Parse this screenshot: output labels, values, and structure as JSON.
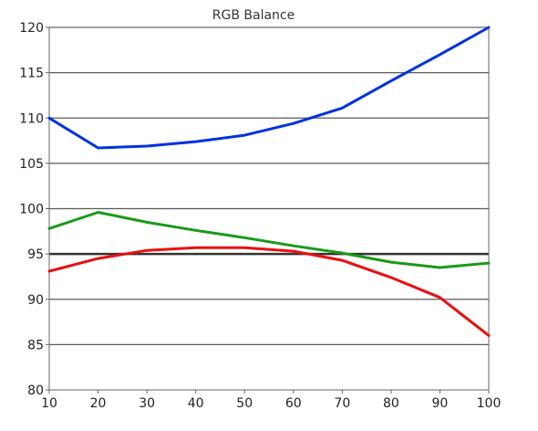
{
  "chart_data": {
    "type": "line",
    "title": "RGB Balance",
    "xlabel": "",
    "ylabel": "",
    "xlim": [
      10,
      100
    ],
    "ylim": [
      80,
      120
    ],
    "x": [
      10,
      20,
      30,
      40,
      50,
      60,
      70,
      80,
      90,
      100
    ],
    "xticks": [
      10,
      20,
      30,
      40,
      50,
      60,
      70,
      80,
      90,
      100
    ],
    "yticks": [
      80,
      85,
      90,
      95,
      100,
      105,
      110,
      115,
      120
    ],
    "grid": "horizontal",
    "legend": "none",
    "reference_line": 95,
    "series": [
      {
        "color": "#0033dd",
        "values": [
          110,
          106.7,
          106.9,
          107.4,
          108.1,
          109.4,
          111.1,
          114.1,
          117.0,
          120.0
        ]
      },
      {
        "color": "#1a9a1a",
        "values": [
          97.8,
          99.6,
          98.5,
          97.6,
          96.8,
          95.9,
          95.1,
          94.1,
          93.5,
          94.0
        ]
      },
      {
        "color": "#e81010",
        "values": [
          93.1,
          94.5,
          95.4,
          95.7,
          95.7,
          95.3,
          94.3,
          92.4,
          90.2,
          86.0
        ]
      }
    ],
    "colors": {
      "grid": "#5a5a5a",
      "reference": "#333333",
      "axis": "#666666"
    }
  }
}
